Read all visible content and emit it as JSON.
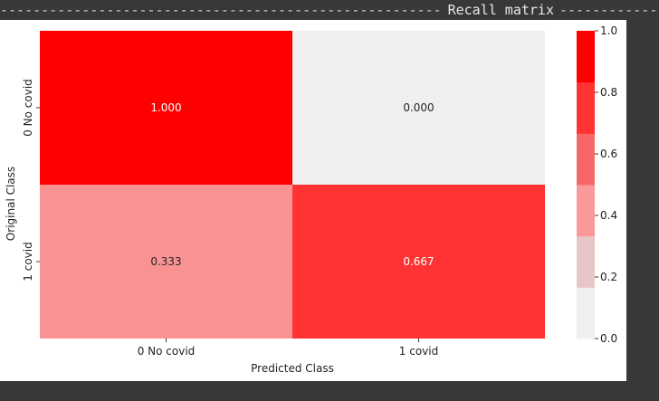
{
  "console": {
    "header_title": "Recall matrix"
  },
  "chart_data": {
    "type": "heatmap",
    "title": "",
    "xlabel": "Predicted Class",
    "ylabel": "Original Class",
    "x_categories": [
      "0 No covid",
      "1 covid"
    ],
    "y_categories": [
      "0 No covid",
      "1 covid"
    ],
    "values": [
      [
        1.0,
        0.0
      ],
      [
        0.333,
        0.667
      ]
    ],
    "annotations": [
      [
        "1.000",
        "0.000"
      ],
      [
        "0.333",
        "0.667"
      ]
    ],
    "colorbar": {
      "range": [
        0.0,
        1.0
      ],
      "ticks": [
        "0.0",
        "0.2",
        "0.4",
        "0.6",
        "0.8",
        "1.0"
      ],
      "colors": [
        "#f0efed",
        "#e8c5c6",
        "#fa9999",
        "#f86767",
        "#ff3333",
        "#ff0000"
      ]
    },
    "colors": {
      "v_1.000": "#ff0000",
      "v_0.000": "#f0efed",
      "v_0.333": "#f99393",
      "v_0.667": "#ff3333"
    }
  }
}
